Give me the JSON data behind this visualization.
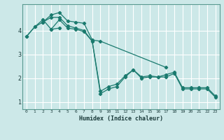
{
  "xlabel": "Humidex (Indice chaleur)",
  "bg_color": "#cce8e8",
  "grid_color": "#ffffff",
  "line_color": "#1a7a6e",
  "xlim": [
    -0.5,
    23.5
  ],
  "ylim": [
    0.7,
    5.1
  ],
  "yticks": [
    1,
    2,
    3,
    4
  ],
  "xticks": [
    0,
    1,
    2,
    3,
    4,
    5,
    6,
    7,
    8,
    9,
    10,
    11,
    12,
    13,
    14,
    15,
    16,
    17,
    18,
    19,
    20,
    21,
    22,
    23
  ],
  "series": [
    {
      "x": [
        0,
        1,
        2,
        3,
        4,
        5,
        6,
        7,
        8,
        9,
        10,
        11,
        12,
        13,
        14,
        15,
        16,
        17,
        18,
        19,
        20,
        21,
        22,
        23
      ],
      "y": [
        3.75,
        4.15,
        4.45,
        4.05,
        4.45,
        4.1,
        4.05,
        3.95,
        3.55,
        1.35,
        1.55,
        1.65,
        2.05,
        2.35,
        2.0,
        2.05,
        2.05,
        2.05,
        2.2,
        1.55,
        1.55,
        1.55,
        1.55,
        1.2
      ]
    },
    {
      "x": [
        2,
        3,
        4,
        5,
        6,
        7,
        8,
        9,
        17
      ],
      "y": [
        4.35,
        4.65,
        4.75,
        4.4,
        4.35,
        4.3,
        3.6,
        3.55,
        2.45
      ]
    },
    {
      "x": [
        3,
        4
      ],
      "y": [
        4.05,
        4.1
      ]
    },
    {
      "x": [
        0,
        1,
        2,
        3,
        4,
        5,
        6,
        7,
        8,
        9,
        10,
        11,
        12,
        13,
        14,
        15,
        16,
        17,
        18,
        19,
        20,
        21,
        22,
        23
      ],
      "y": [
        3.75,
        4.15,
        4.35,
        4.55,
        4.55,
        4.2,
        4.1,
        4.0,
        3.55,
        1.45,
        1.65,
        1.75,
        2.1,
        2.35,
        2.05,
        2.1,
        2.05,
        2.15,
        2.25,
        1.6,
        1.6,
        1.6,
        1.6,
        1.25
      ]
    }
  ]
}
